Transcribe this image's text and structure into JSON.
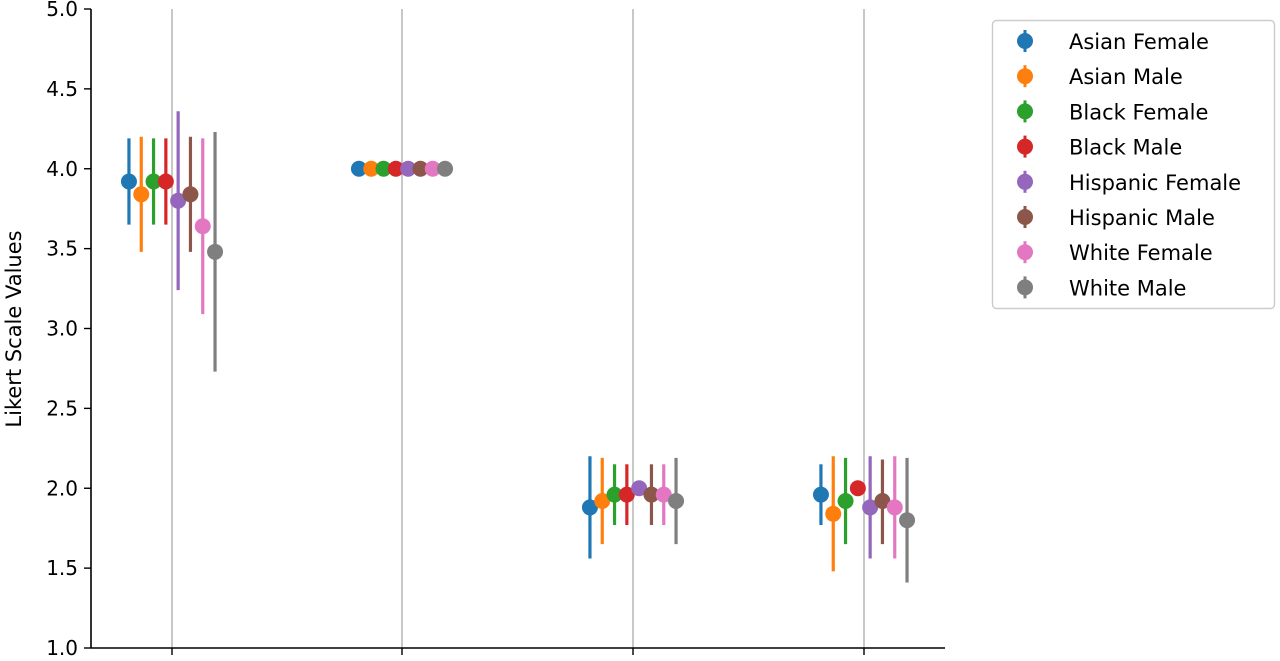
{
  "chart_data": {
    "type": "scatter",
    "title": "",
    "xlabel": "",
    "ylabel": "Likert Scale Values",
    "ylim": [
      1.0,
      5.0
    ],
    "yticks": [
      "1.0",
      "1.5",
      "2.0",
      "2.5",
      "3.0",
      "3.5",
      "4.0",
      "4.5",
      "5.0"
    ],
    "category_count": 4,
    "categories": [
      "",
      "",
      "",
      ""
    ],
    "grid": "vertical lines at categories",
    "legend_position": "upper right, outside plot",
    "error_bars": true,
    "series": [
      {
        "name": "Asian Female",
        "color": "#1f77b4",
        "values": [
          3.92,
          4.0,
          1.88,
          1.96
        ],
        "lower": [
          3.65,
          4.0,
          1.56,
          1.77
        ],
        "upper": [
          4.19,
          4.0,
          2.2,
          2.15
        ]
      },
      {
        "name": "Asian Male",
        "color": "#ff7f0e",
        "values": [
          3.84,
          4.0,
          1.92,
          1.84
        ],
        "lower": [
          3.48,
          4.0,
          1.65,
          1.48
        ],
        "upper": [
          4.2,
          4.0,
          2.19,
          2.2
        ]
      },
      {
        "name": "Black Female",
        "color": "#2ca02c",
        "values": [
          3.92,
          4.0,
          1.96,
          1.92
        ],
        "lower": [
          3.65,
          4.0,
          1.77,
          1.65
        ],
        "upper": [
          4.19,
          4.0,
          2.15,
          2.19
        ]
      },
      {
        "name": "Black Male",
        "color": "#d62728",
        "values": [
          3.92,
          4.0,
          1.96,
          2.0
        ],
        "lower": [
          3.65,
          4.0,
          1.77,
          2.0
        ],
        "upper": [
          4.19,
          4.0,
          2.15,
          2.0
        ]
      },
      {
        "name": "Hispanic Female",
        "color": "#9467bd",
        "values": [
          3.8,
          4.0,
          2.0,
          1.88
        ],
        "lower": [
          3.24,
          4.0,
          2.0,
          1.56
        ],
        "upper": [
          4.36,
          4.0,
          2.0,
          2.2
        ]
      },
      {
        "name": "Hispanic Male",
        "color": "#8c564b",
        "values": [
          3.84,
          4.0,
          1.96,
          1.92
        ],
        "lower": [
          3.48,
          4.0,
          1.77,
          1.65
        ],
        "upper": [
          4.2,
          4.0,
          2.15,
          2.18
        ]
      },
      {
        "name": "White Female",
        "color": "#e377c2",
        "values": [
          3.64,
          4.0,
          1.96,
          1.88
        ],
        "lower": [
          3.09,
          4.0,
          1.77,
          1.56
        ],
        "upper": [
          4.19,
          4.0,
          2.15,
          2.2
        ]
      },
      {
        "name": "White Male",
        "color": "#7f7f7f",
        "values": [
          3.48,
          4.0,
          1.92,
          1.8
        ],
        "lower": [
          2.73,
          4.0,
          1.65,
          1.41
        ],
        "upper": [
          4.23,
          4.0,
          2.19,
          2.19
        ]
      }
    ]
  }
}
